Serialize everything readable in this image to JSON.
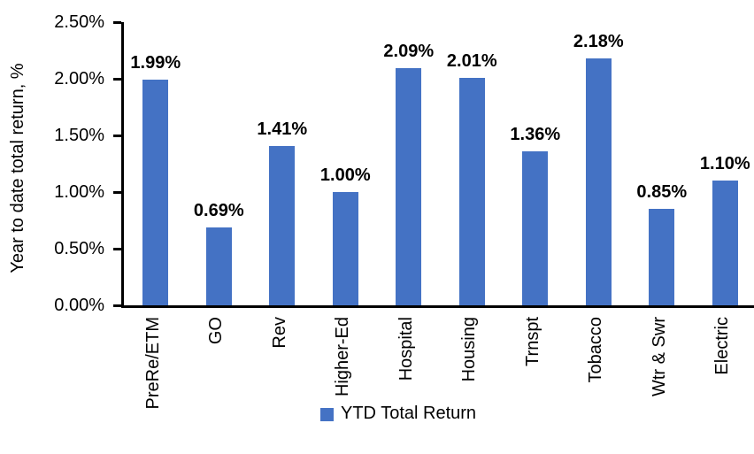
{
  "chart_data": {
    "type": "bar",
    "title": "",
    "xlabel": "",
    "ylabel": "Year to date total return, %",
    "categories": [
      "PreRe/ETM",
      "GO",
      "Rev",
      "Higher-Ed",
      "Hospital",
      "Housing",
      "Trnspt",
      "Tobacco",
      "Wtr & Swr",
      "Electric"
    ],
    "values": [
      1.99,
      0.69,
      1.41,
      1.0,
      2.09,
      2.01,
      1.36,
      2.18,
      0.85,
      1.1
    ],
    "value_labels": [
      "1.99%",
      "0.69%",
      "1.41%",
      "1.00%",
      "2.09%",
      "2.01%",
      "1.36%",
      "2.18%",
      "0.85%",
      "1.10%"
    ],
    "ylim": [
      0,
      2.5
    ],
    "yticks": [
      {
        "value": 0.0,
        "label": "0.00%"
      },
      {
        "value": 0.5,
        "label": "0.50%"
      },
      {
        "value": 1.0,
        "label": "1.00%"
      },
      {
        "value": 1.5,
        "label": "1.50%"
      },
      {
        "value": 2.0,
        "label": "2.00%"
      },
      {
        "value": 2.5,
        "label": "2.50%"
      }
    ],
    "grid": false,
    "bar_color": "#4472C4",
    "axis_color": "#000000",
    "legend": {
      "position": "bottom",
      "entries": [
        {
          "label": "YTD Total Return",
          "color": "#4472C4"
        }
      ]
    }
  }
}
